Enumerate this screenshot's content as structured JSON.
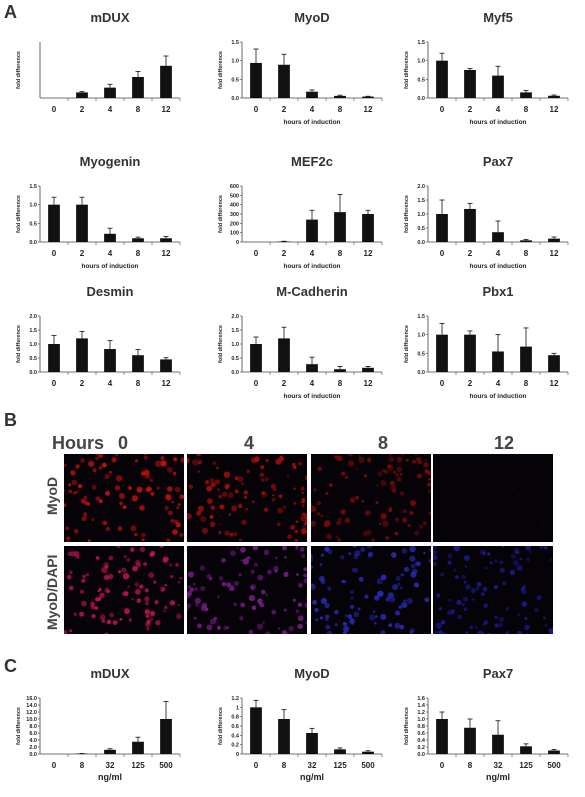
{
  "panels": {
    "a": "A",
    "b": "B",
    "c": "C"
  },
  "common": {
    "ylabel": "fold difference",
    "xlabel_hours": "hours of induction",
    "xlabel_dose": "ng/ml"
  },
  "chart_data": [
    {
      "panel": "A",
      "title": "mDUX",
      "type": "bar",
      "categories": [
        "0",
        "2",
        "4",
        "8",
        "12"
      ],
      "values": [
        0.0,
        0.2,
        0.37,
        0.75,
        1.15
      ],
      "errors": [
        0,
        0.03,
        0.12,
        0.2,
        0.35
      ],
      "ylim": [
        0,
        2.0
      ],
      "yticks": [],
      "xlabel": "",
      "ylabel": "fold difference"
    },
    {
      "panel": "A",
      "title": "MyoD",
      "type": "bar",
      "categories": [
        "0",
        "2",
        "4",
        "8",
        "12"
      ],
      "values": [
        1.0,
        0.95,
        0.18,
        0.06,
        0.04
      ],
      "errors": [
        0.4,
        0.3,
        0.05,
        0.02,
        0.01
      ],
      "ylim": [
        0,
        1.6
      ],
      "yticks": [
        "0.0",
        "0.5",
        "1.0",
        "1.5"
      ],
      "xlabel": "hours of induction",
      "ylabel": "fold difference"
    },
    {
      "panel": "A",
      "title": "Myf5",
      "type": "bar",
      "categories": [
        "0",
        "2",
        "4",
        "8",
        "12"
      ],
      "values": [
        1.0,
        0.75,
        0.6,
        0.15,
        0.06
      ],
      "errors": [
        0.2,
        0.04,
        0.25,
        0.05,
        0.02
      ],
      "ylim": [
        0,
        1.5
      ],
      "yticks": [
        "0.0",
        "0.5",
        "1.0",
        "1.5"
      ],
      "xlabel": "hours of induction",
      "ylabel": "fold difference"
    },
    {
      "panel": "A",
      "title": "Myogenin",
      "type": "bar",
      "categories": [
        "0",
        "2",
        "4",
        "8",
        "12"
      ],
      "values": [
        1.0,
        1.0,
        0.22,
        0.1,
        0.1
      ],
      "errors": [
        0.2,
        0.2,
        0.15,
        0.03,
        0.05
      ],
      "ylim": [
        0,
        1.5
      ],
      "yticks": [
        "0.0",
        "0.5",
        "1.0",
        "1.5"
      ],
      "xlabel": "hours of induction",
      "ylabel": "fold difference"
    },
    {
      "panel": "A",
      "title": "MEF2c",
      "type": "bar",
      "categories": [
        "0",
        "2",
        "4",
        "8",
        "12"
      ],
      "values": [
        0,
        5,
        240,
        320,
        300
      ],
      "errors": [
        0,
        3,
        100,
        190,
        40
      ],
      "ylim": [
        0,
        600
      ],
      "yticks": [
        "0",
        "100",
        "200",
        "300",
        "400",
        "500",
        "600"
      ],
      "xlabel": "hours of induction",
      "ylabel": "fold difference"
    },
    {
      "panel": "A",
      "title": "Pax7",
      "type": "bar",
      "categories": [
        "0",
        "2",
        "4",
        "8",
        "12"
      ],
      "values": [
        1.0,
        1.18,
        0.35,
        0.06,
        0.12
      ],
      "errors": [
        0.5,
        0.2,
        0.4,
        0.03,
        0.06
      ],
      "ylim": [
        0,
        2.0
      ],
      "yticks": [
        "0.0",
        "0.5",
        "1.0",
        "1.5",
        "2.0"
      ],
      "xlabel": "hours of induction",
      "ylabel": "fold difference"
    },
    {
      "panel": "A",
      "title": "Desmin",
      "type": "bar",
      "categories": [
        "0",
        "2",
        "4",
        "8",
        "12"
      ],
      "values": [
        1.0,
        1.2,
        0.82,
        0.6,
        0.45
      ],
      "errors": [
        0.3,
        0.25,
        0.3,
        0.2,
        0.06
      ],
      "ylim": [
        0,
        2.0
      ],
      "yticks": [
        "0.0",
        "0.5",
        "1.0",
        "1.5",
        "2.0"
      ],
      "xlabel": "",
      "ylabel": "fold difference"
    },
    {
      "panel": "A",
      "title": "M-Cadherin",
      "type": "bar",
      "categories": [
        "0",
        "2",
        "4",
        "8",
        "12"
      ],
      "values": [
        1.0,
        1.2,
        0.28,
        0.1,
        0.15
      ],
      "errors": [
        0.25,
        0.4,
        0.25,
        0.1,
        0.05
      ],
      "ylim": [
        0,
        2.0
      ],
      "yticks": [
        "0.0",
        "0.5",
        "1.0",
        "1.5",
        "2.0"
      ],
      "xlabel": "hours of induction",
      "ylabel": "fold difference"
    },
    {
      "panel": "A",
      "title": "Pbx1",
      "type": "bar",
      "categories": [
        "0",
        "2",
        "4",
        "8",
        "12"
      ],
      "values": [
        1.0,
        1.0,
        0.55,
        0.68,
        0.45
      ],
      "errors": [
        0.3,
        0.1,
        0.45,
        0.5,
        0.05
      ],
      "ylim": [
        0,
        1.5
      ],
      "yticks": [
        "0.0",
        "0.5",
        "1.0",
        "1.5"
      ],
      "xlabel": "hours of induction",
      "ylabel": "fold difference"
    },
    {
      "panel": "C",
      "title": "mDUX",
      "type": "bar",
      "categories": [
        "0",
        "8",
        "32",
        "125",
        "500"
      ],
      "values": [
        0,
        0.1,
        1.2,
        3.5,
        10.0
      ],
      "errors": [
        0,
        0.05,
        0.3,
        1.3,
        5.0
      ],
      "ylim": [
        0,
        16.0
      ],
      "yticks": [
        "0.0",
        "2.0",
        "4.0",
        "6.0",
        "8.0",
        "10.0",
        "12.0",
        "14.0",
        "16.0"
      ],
      "xlabel": "ng/ml",
      "ylabel": "fold difference"
    },
    {
      "panel": "C",
      "title": "MyoD",
      "type": "bar",
      "categories": [
        "0",
        "8",
        "32",
        "125",
        "500"
      ],
      "values": [
        1.0,
        0.75,
        0.45,
        0.1,
        0.05
      ],
      "errors": [
        0.15,
        0.2,
        0.1,
        0.03,
        0.02
      ],
      "ylim": [
        0,
        1.2
      ],
      "yticks": [
        "0",
        "0.2",
        "0.4",
        "0.6",
        "0.8",
        "1",
        "1.2"
      ],
      "xlabel": "ng/ml",
      "ylabel": "fold difference"
    },
    {
      "panel": "C",
      "title": "Pax7",
      "type": "bar",
      "categories": [
        "0",
        "8",
        "32",
        "125",
        "500"
      ],
      "values": [
        1.0,
        0.75,
        0.55,
        0.22,
        0.1
      ],
      "errors": [
        0.2,
        0.25,
        0.4,
        0.07,
        0.03
      ],
      "ylim": [
        0,
        1.6
      ],
      "yticks": [
        "0.0",
        "0.2",
        "0.4",
        "0.6",
        "0.8",
        "1.0",
        "1.2",
        "1.4",
        "1.6"
      ],
      "xlabel": "ng/ml",
      "ylabel": "fold difference"
    }
  ],
  "micrographs": {
    "header": "Hours",
    "timepoints": [
      "0",
      "4",
      "8",
      "12"
    ],
    "rows": [
      {
        "label": "MyoD",
        "colors": [
          "#c81010",
          "#a80c0c",
          "#7a0a0a",
          "#2a0303"
        ]
      },
      {
        "label": "MyoD/DAPI",
        "colors": [
          "#c41450",
          "#7a1c8a",
          "#2a2ab8",
          "#1a1a8c"
        ]
      }
    ]
  }
}
